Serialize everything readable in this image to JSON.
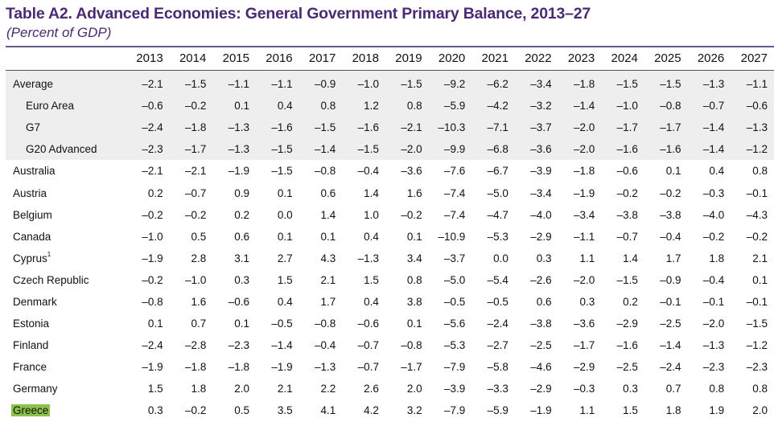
{
  "title": "Table A2. Advanced Economies: General Government Primary Balance, 2013–27",
  "subtitle": "(Percent of GDP)",
  "years": [
    "2013",
    "2014",
    "2015",
    "2016",
    "2017",
    "2018",
    "2019",
    "2020",
    "2021",
    "2022",
    "2023",
    "2024",
    "2025",
    "2026",
    "2027"
  ],
  "rows": [
    {
      "label": "Average",
      "indent": false,
      "shaded": true,
      "footnote": "",
      "highlight": false,
      "values": [
        "–2.1",
        "–1.5",
        "–1.1",
        "–1.1",
        "–0.9",
        "–1.0",
        "–1.5",
        "–9.2",
        "–6.2",
        "–3.4",
        "–1.8",
        "–1.5",
        "–1.5",
        "–1.3",
        "–1.1"
      ]
    },
    {
      "label": "Euro Area",
      "indent": true,
      "shaded": true,
      "footnote": "",
      "highlight": false,
      "values": [
        "–0.6",
        "–0.2",
        "0.1",
        "0.4",
        "0.8",
        "1.2",
        "0.8",
        "–5.9",
        "–4.2",
        "–3.2",
        "–1.4",
        "–1.0",
        "–0.8",
        "–0.7",
        "–0.6"
      ]
    },
    {
      "label": "G7",
      "indent": true,
      "shaded": true,
      "footnote": "",
      "highlight": false,
      "values": [
        "–2.4",
        "–1.8",
        "–1.3",
        "–1.6",
        "–1.5",
        "–1.6",
        "–2.1",
        "–10.3",
        "–7.1",
        "–3.7",
        "–2.0",
        "–1.7",
        "–1.7",
        "–1.4",
        "–1.3"
      ]
    },
    {
      "label": "G20 Advanced",
      "indent": true,
      "shaded": true,
      "footnote": "",
      "highlight": false,
      "values": [
        "–2.3",
        "–1.7",
        "–1.3",
        "–1.5",
        "–1.4",
        "–1.5",
        "–2.0",
        "–9.9",
        "–6.8",
        "–3.6",
        "–2.0",
        "–1.6",
        "–1.6",
        "–1.4",
        "–1.2"
      ]
    },
    {
      "label": "Australia",
      "indent": false,
      "shaded": false,
      "footnote": "",
      "highlight": false,
      "values": [
        "–2.1",
        "–2.1",
        "–1.9",
        "–1.5",
        "–0.8",
        "–0.4",
        "–3.6",
        "–7.6",
        "–6.7",
        "–3.9",
        "–1.8",
        "–0.6",
        "0.1",
        "0.4",
        "0.8"
      ]
    },
    {
      "label": "Austria",
      "indent": false,
      "shaded": false,
      "footnote": "",
      "highlight": false,
      "values": [
        "0.2",
        "–0.7",
        "0.9",
        "0.1",
        "0.6",
        "1.4",
        "1.6",
        "–7.4",
        "–5.0",
        "–3.4",
        "–1.9",
        "–0.2",
        "–0.2",
        "–0.3",
        "–0.1"
      ]
    },
    {
      "label": "Belgium",
      "indent": false,
      "shaded": false,
      "footnote": "",
      "highlight": false,
      "values": [
        "–0.2",
        "–0.2",
        "0.2",
        "0.0",
        "1.4",
        "1.0",
        "–0.2",
        "–7.4",
        "–4.7",
        "–4.0",
        "–3.4",
        "–3.8",
        "–3.8",
        "–4.0",
        "–4.3"
      ]
    },
    {
      "label": "Canada",
      "indent": false,
      "shaded": false,
      "footnote": "",
      "highlight": false,
      "values": [
        "–1.0",
        "0.5",
        "0.6",
        "0.1",
        "0.1",
        "0.4",
        "0.1",
        "–10.9",
        "–5.3",
        "–2.9",
        "–1.1",
        "–0.7",
        "–0.4",
        "–0.2",
        "–0.2"
      ]
    },
    {
      "label": "Cyprus",
      "indent": false,
      "shaded": false,
      "footnote": "1",
      "highlight": false,
      "values": [
        "–1.9",
        "2.8",
        "3.1",
        "2.7",
        "4.3",
        "–1.3",
        "3.4",
        "–3.7",
        "0.0",
        "0.3",
        "1.1",
        "1.4",
        "1.7",
        "1.8",
        "2.1"
      ]
    },
    {
      "label": "Czech Republic",
      "indent": false,
      "shaded": false,
      "footnote": "",
      "highlight": false,
      "values": [
        "–0.2",
        "–1.0",
        "0.3",
        "1.5",
        "2.1",
        "1.5",
        "0.8",
        "–5.0",
        "–5.4",
        "–2.6",
        "–2.0",
        "–1.5",
        "–0.9",
        "–0.4",
        "0.1"
      ]
    },
    {
      "label": "Denmark",
      "indent": false,
      "shaded": false,
      "footnote": "",
      "highlight": false,
      "values": [
        "–0.8",
        "1.6",
        "–0.6",
        "0.4",
        "1.7",
        "0.4",
        "3.8",
        "–0.5",
        "–0.5",
        "0.6",
        "0.3",
        "0.2",
        "–0.1",
        "–0.1",
        "–0.1"
      ]
    },
    {
      "label": "Estonia",
      "indent": false,
      "shaded": false,
      "footnote": "",
      "highlight": false,
      "values": [
        "0.1",
        "0.7",
        "0.1",
        "–0.5",
        "–0.8",
        "–0.6",
        "0.1",
        "–5.6",
        "–2.4",
        "–3.8",
        "–3.6",
        "–2.9",
        "–2.5",
        "–2.0",
        "–1.5"
      ]
    },
    {
      "label": "Finland",
      "indent": false,
      "shaded": false,
      "footnote": "",
      "highlight": false,
      "values": [
        "–2.4",
        "–2.8",
        "–2.3",
        "–1.4",
        "–0.4",
        "–0.7",
        "–0.8",
        "–5.3",
        "–2.7",
        "–2.5",
        "–1.7",
        "–1.6",
        "–1.4",
        "–1.3",
        "–1.2"
      ]
    },
    {
      "label": "France",
      "indent": false,
      "shaded": false,
      "footnote": "",
      "highlight": false,
      "values": [
        "–1.9",
        "–1.8",
        "–1.8",
        "–1.9",
        "–1.3",
        "–0.7",
        "–1.7",
        "–7.9",
        "–5.8",
        "–4.6",
        "–2.9",
        "–2.5",
        "–2.4",
        "–2.3",
        "–2.3"
      ]
    },
    {
      "label": "Germany",
      "indent": false,
      "shaded": false,
      "footnote": "",
      "highlight": false,
      "values": [
        "1.5",
        "1.8",
        "2.0",
        "2.1",
        "2.2",
        "2.6",
        "2.0",
        "–3.9",
        "–3.3",
        "–2.9",
        "–0.3",
        "0.3",
        "0.7",
        "0.8",
        "0.8"
      ]
    },
    {
      "label": "Greece",
      "indent": false,
      "shaded": false,
      "footnote": "",
      "highlight": true,
      "values": [
        "0.3",
        "–0.2",
        "0.5",
        "3.5",
        "4.1",
        "4.2",
        "3.2",
        "–7.9",
        "–5.9",
        "–1.9",
        "1.1",
        "1.5",
        "1.8",
        "1.9",
        "2.0"
      ]
    }
  ]
}
